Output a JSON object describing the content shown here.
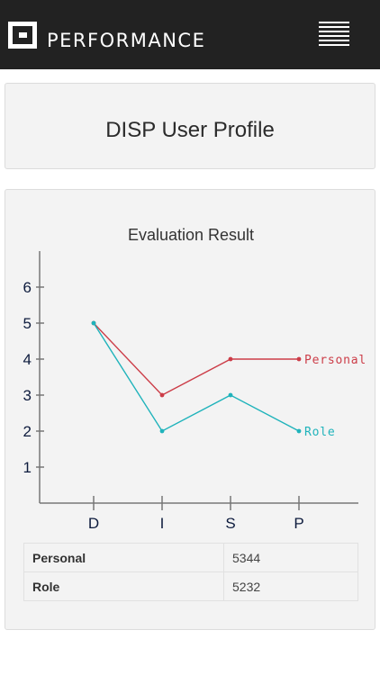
{
  "header": {
    "brand": "PERFORMANCE",
    "logo_icon": "pj-logo-icon",
    "menu_icon": "hamburger-menu-icon"
  },
  "profile": {
    "title": "DISP User Profile"
  },
  "chart_data": {
    "type": "line",
    "title": "Evaluation Result",
    "categories": [
      "D",
      "I",
      "S",
      "P"
    ],
    "ylim": [
      0,
      7
    ],
    "yticks": [
      1,
      2,
      3,
      4,
      5,
      6
    ],
    "grid": false,
    "legend": "inline-end-of-line",
    "series": [
      {
        "name": "Personal",
        "values": [
          5,
          3,
          4,
          4
        ],
        "color": "#cc3d48"
      },
      {
        "name": "Role",
        "values": [
          5,
          2,
          3,
          2
        ],
        "color": "#1fb3bb"
      }
    ]
  },
  "scores": [
    {
      "name": "Personal",
      "value": "5344"
    },
    {
      "name": "Role",
      "value": "5232"
    }
  ]
}
